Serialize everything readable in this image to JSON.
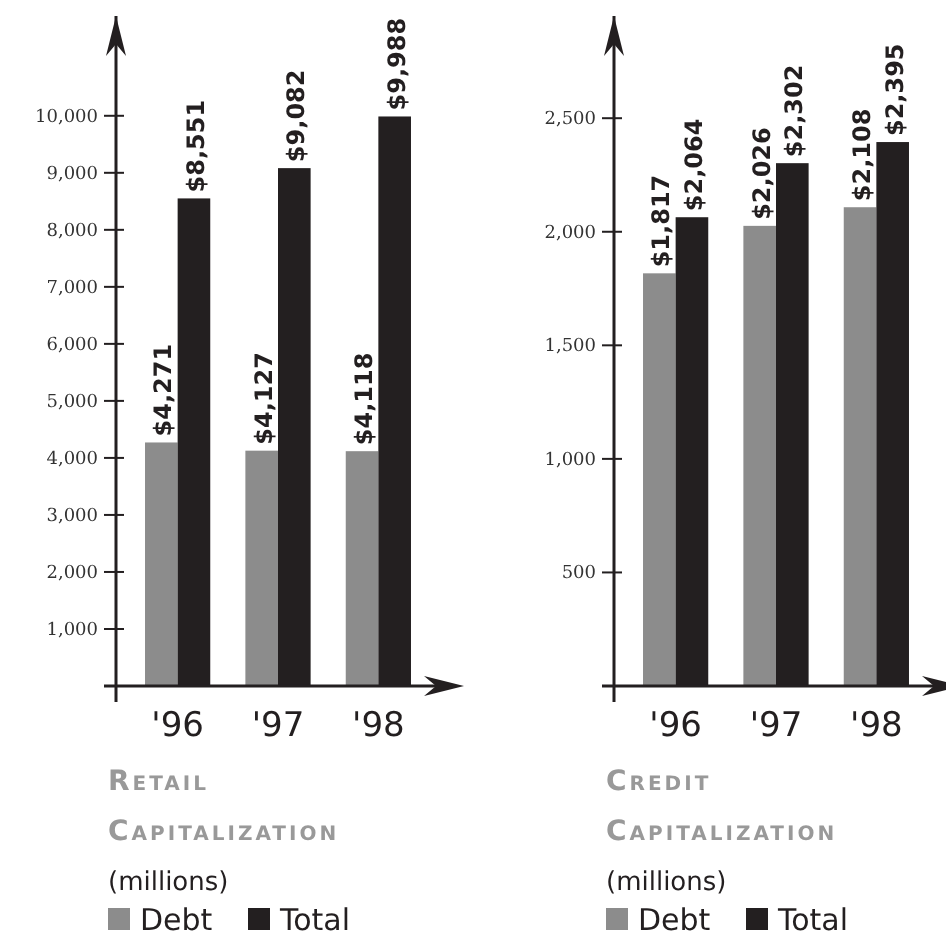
{
  "chart_data": [
    {
      "type": "bar",
      "title": "Retail Capitalization",
      "subtitle": "(millions)",
      "categories": [
        "'96",
        "'97",
        "'98"
      ],
      "ylim": [
        0,
        11750
      ],
      "yticks": [
        {
          "value": 1000,
          "label": "1,000"
        },
        {
          "value": 2000,
          "label": "2,000"
        },
        {
          "value": 3000,
          "label": "3,000"
        },
        {
          "value": 4000,
          "label": "4,000"
        },
        {
          "value": 5000,
          "label": "5,000"
        },
        {
          "value": 6000,
          "label": "6,000"
        },
        {
          "value": 7000,
          "label": "7,000"
        },
        {
          "value": 8000,
          "label": "8,000"
        },
        {
          "value": 9000,
          "label": "9,000"
        },
        {
          "value": 10000,
          "label": "10,000"
        }
      ],
      "legend": "bottom",
      "grid": false,
      "series": [
        {
          "name": "Debt",
          "color": "#8c8c8c",
          "values": [
            4271,
            4127,
            4118
          ],
          "value_labels": [
            "$4,271",
            "$4,127",
            "$4,118"
          ]
        },
        {
          "name": "Total",
          "color": "#231f20",
          "values": [
            8551,
            9082,
            9988
          ],
          "value_labels": [
            "$8,551",
            "$9,082",
            "$9,988"
          ]
        }
      ]
    },
    {
      "type": "bar",
      "title": "Credit Capitalization",
      "subtitle": "(millions)",
      "categories": [
        "'96",
        "'97",
        "'98"
      ],
      "ylim": [
        0,
        2950
      ],
      "yticks": [
        {
          "value": 500,
          "label": "500"
        },
        {
          "value": 1000,
          "label": "1,000"
        },
        {
          "value": 1500,
          "label": "1,500"
        },
        {
          "value": 2000,
          "label": "2,000"
        },
        {
          "value": 2500,
          "label": "2,500"
        }
      ],
      "legend": "bottom",
      "grid": false,
      "series": [
        {
          "name": "Debt",
          "color": "#8c8c8c",
          "values": [
            1817,
            2026,
            2108
          ],
          "value_labels": [
            "$1,817",
            "$2,026",
            "$2,108"
          ]
        },
        {
          "name": "Total",
          "color": "#231f20",
          "values": [
            2064,
            2302,
            2395
          ],
          "value_labels": [
            "$2,064",
            "$2,302",
            "$2,395"
          ]
        }
      ]
    }
  ]
}
